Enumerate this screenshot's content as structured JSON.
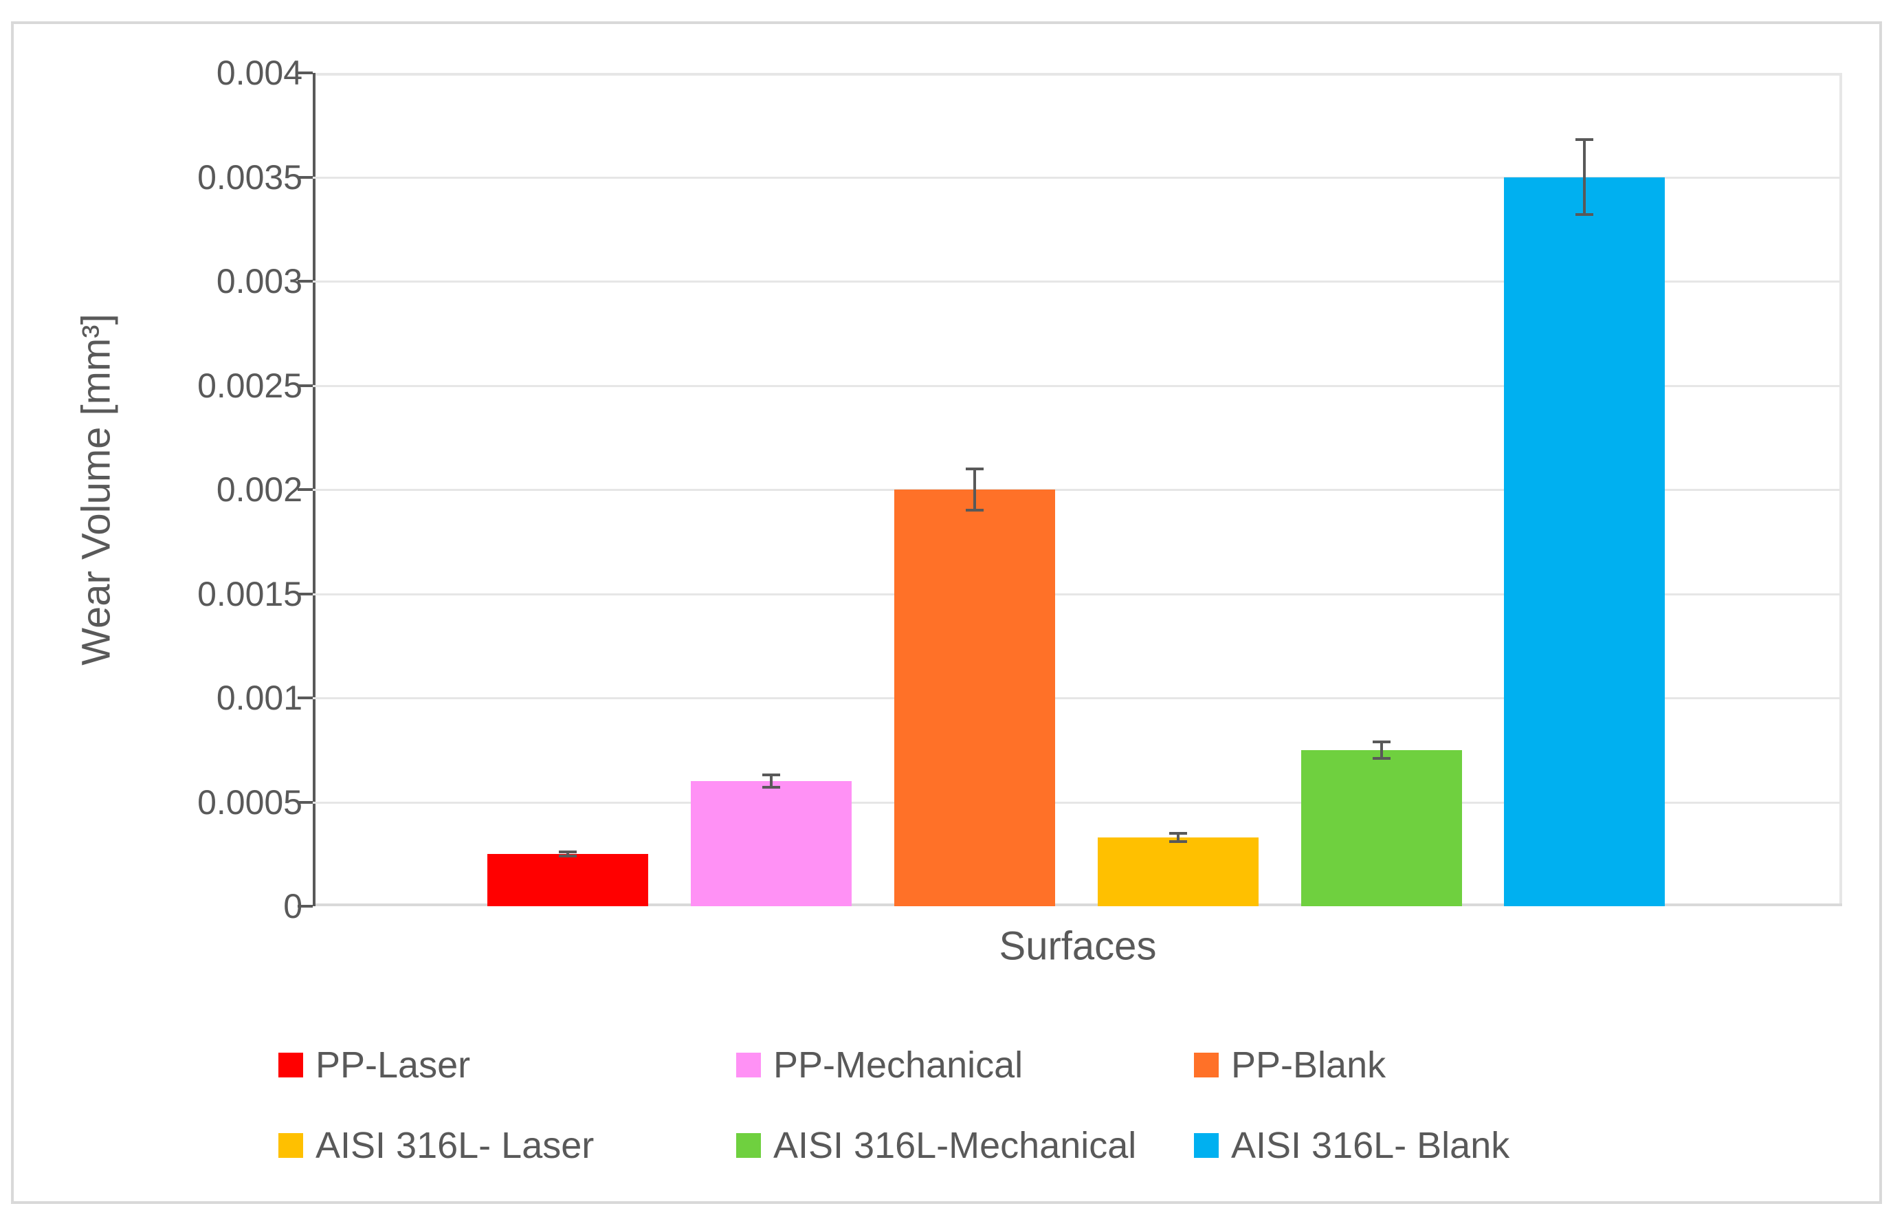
{
  "chart_data": {
    "type": "bar",
    "title": "",
    "xlabel": "Surfaces",
    "ylabel": "Wear Volume [mm3]",
    "ylabel_display": "Wear Volume [mm³]",
    "ylim": [
      0,
      0.004
    ],
    "yticks": [
      "0",
      "0.0005",
      "0.001",
      "0.0015",
      "0.002",
      "0.0025",
      "0.003",
      "0.0035",
      "0.004"
    ],
    "grid": true,
    "legend_position": "bottom",
    "categories": [
      "PP-Laser",
      "PP-Mechanical",
      "PP-Blank",
      "AISI 316L- Laser",
      "AISI 316L-Mechanical",
      "AISI 316L- Blank"
    ],
    "series": [
      {
        "name": "PP-Laser",
        "color": "#ff0000",
        "value": 0.00025,
        "error": 1e-05
      },
      {
        "name": "PP-Mechanical",
        "color": "#ff91f5",
        "value": 0.0006,
        "error": 3e-05
      },
      {
        "name": "PP-Blank",
        "color": "#ff7128",
        "value": 0.002,
        "error": 0.0001
      },
      {
        "name": "AISI 316L- Laser",
        "color": "#ffc000",
        "value": 0.00033,
        "error": 2e-05
      },
      {
        "name": "AISI 316L-Mechanical",
        "color": "#6fd03f",
        "value": 0.00075,
        "error": 4e-05
      },
      {
        "name": "AISI 316L- Blank",
        "color": "#00b0f0",
        "value": 0.0035,
        "error": 0.00018
      }
    ],
    "values": [
      0.00025,
      0.0006,
      0.002,
      0.00033,
      0.00075,
      0.0035
    ]
  },
  "labels": {
    "y_title": "Wear Volume [mm³]",
    "x_title": "Surfaces"
  }
}
